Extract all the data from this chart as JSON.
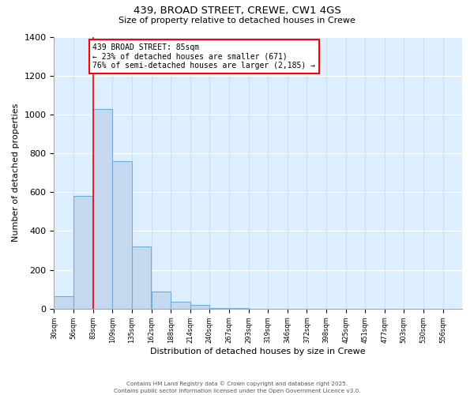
{
  "title": "439, BROAD STREET, CREWE, CW1 4GS",
  "subtitle": "Size of property relative to detached houses in Crewe",
  "xlabel": "Distribution of detached houses by size in Crewe",
  "ylabel": "Number of detached properties",
  "bar_values": [
    65,
    580,
    1030,
    760,
    320,
    90,
    38,
    18,
    5,
    2,
    0,
    0,
    0,
    0,
    0,
    0,
    0,
    0,
    0,
    0
  ],
  "bin_labels": [
    "30sqm",
    "56sqm",
    "83sqm",
    "109sqm",
    "135sqm",
    "162sqm",
    "188sqm",
    "214sqm",
    "240sqm",
    "267sqm",
    "293sqm",
    "319sqm",
    "346sqm",
    "372sqm",
    "398sqm",
    "425sqm",
    "451sqm",
    "477sqm",
    "503sqm",
    "530sqm",
    "556sqm"
  ],
  "bar_color": "#c5d8f0",
  "bar_edge_color": "#6baed6",
  "annotation_text": "439 BROAD STREET: 85sqm\n← 23% of detached houses are smaller (671)\n76% of semi-detached houses are larger (2,185) →",
  "ylim": [
    0,
    1400
  ],
  "yticks": [
    0,
    200,
    400,
    600,
    800,
    1000,
    1200,
    1400
  ],
  "footer_line1": "Contains HM Land Registry data © Crown copyright and database right 2025.",
  "footer_line2": "Contains public sector information licensed under the Open Government Licence v3.0.",
  "background_color": "#ddeeff",
  "plot_background": "#ffffff",
  "bin_edges": [
    30,
    56,
    83,
    109,
    135,
    162,
    188,
    214,
    240,
    267,
    293,
    319,
    346,
    372,
    398,
    425,
    451,
    477,
    503,
    530
  ],
  "bin_width": 26,
  "xlim_min": 30,
  "xlim_max": 582
}
